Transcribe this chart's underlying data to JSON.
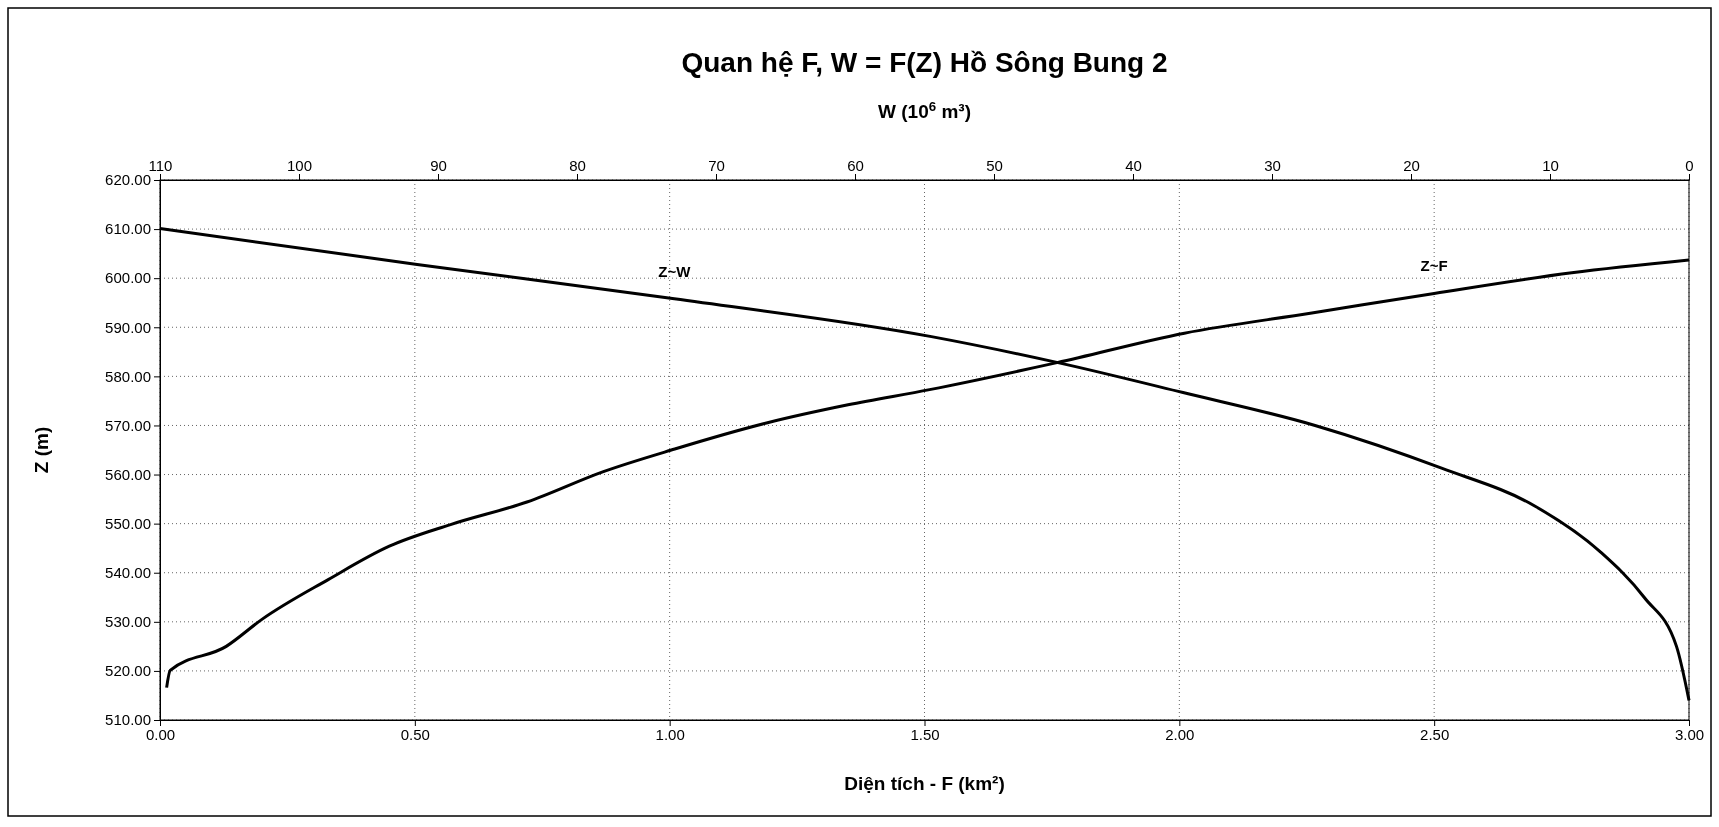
{
  "chart_data": {
    "type": "line",
    "title": "Quan hệ F, W = F(Z) Hồ Sông Bung 2",
    "xlabel": "Diện tích - F (km²)",
    "x2label": "W (10$^{6}$ m³)",
    "ylabel": "Z (m)",
    "xlim": [
      0,
      3
    ],
    "xticks": [
      {
        "value": 0,
        "label": "0.00"
      },
      {
        "value": 0.5,
        "label": "0.50"
      },
      {
        "value": 1,
        "label": "1.00"
      },
      {
        "value": 1.5,
        "label": "1.50"
      },
      {
        "value": 2,
        "label": "2.00"
      },
      {
        "value": 2.5,
        "label": "2.50"
      },
      {
        "value": 3,
        "label": "3.00"
      }
    ],
    "x2lim": [
      110,
      0
    ],
    "x2ticks": [
      110,
      100,
      90,
      80,
      70,
      60,
      50,
      40,
      30,
      20,
      10,
      0
    ],
    "ylim": [
      510,
      620
    ],
    "yticks": [
      {
        "value": 510,
        "label": "510.00"
      },
      {
        "value": 520,
        "label": "520.00"
      },
      {
        "value": 530,
        "label": "530.00"
      },
      {
        "value": 540,
        "label": "540.00"
      },
      {
        "value": 550,
        "label": "550.00"
      },
      {
        "value": 560,
        "label": "560.00"
      },
      {
        "value": 570,
        "label": "570.00"
      },
      {
        "value": 580,
        "label": "580.00"
      },
      {
        "value": 590,
        "label": "590.00"
      },
      {
        "value": 600,
        "label": "600.00"
      },
      {
        "value": 610,
        "label": "610.00"
      },
      {
        "value": 620,
        "label": "620.00"
      }
    ],
    "grid": true,
    "marker": "none",
    "line_style": "solid",
    "series": [
      {
        "name": "Z~F",
        "color": "#000000",
        "x": [
          0.013,
          0.02,
          0.13,
          0.2,
          0.33,
          0.45,
          0.57,
          0.72,
          0.87,
          1.01,
          1.19,
          1.35,
          1.51,
          1.76,
          2.01,
          2.26,
          2.5,
          2.77,
          3.0
        ],
        "values": [
          516.6,
          520.1,
          525,
          530.5,
          538.6,
          545.4,
          549.8,
          554.4,
          560.6,
          565.2,
          570.5,
          574.2,
          577.3,
          582.8,
          588.8,
          592.9,
          596.9,
          601.1,
          603.7
        ]
      },
      {
        "name": "Z~W",
        "color": "#000000",
        "axis": "x2",
        "x": [
          110,
          91.5,
          73,
          54.5,
          45.4,
          36.4,
          26.9,
          17.8,
          11.1,
          6.4,
          3.2,
          0.9,
          0
        ],
        "values": [
          610.1,
          602.8,
          595.8,
          588.1,
          582.8,
          576.7,
          570,
          561.3,
          553.6,
          544.3,
          534.9,
          525,
          514
        ]
      }
    ]
  }
}
